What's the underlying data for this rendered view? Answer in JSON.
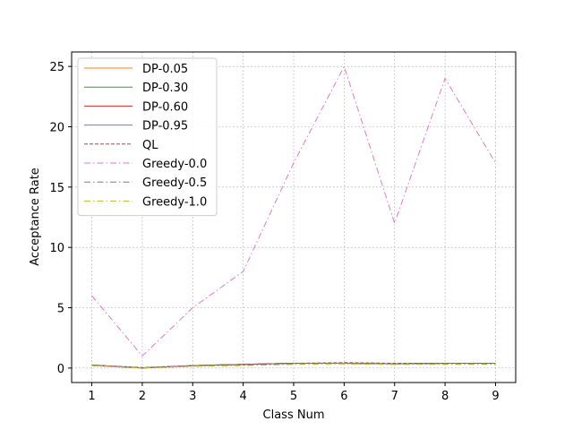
{
  "chart_data": {
    "type": "line",
    "xlabel": "Class Num",
    "ylabel": "Acceptance Rate",
    "x": [
      1,
      2,
      3,
      4,
      5,
      6,
      7,
      8,
      9
    ],
    "xlim": [
      0.6,
      9.4
    ],
    "ylim": [
      -1.2,
      26.2
    ],
    "xticks": [
      1,
      2,
      3,
      4,
      5,
      6,
      7,
      8,
      9
    ],
    "yticks": [
      0,
      5,
      10,
      15,
      20,
      25
    ],
    "grid": true,
    "legend_position": "upper-left",
    "series": [
      {
        "name": "DP-0.05",
        "color": "#ff7f0e",
        "style": "solid",
        "values": [
          0.25,
          0.0,
          0.2,
          0.3,
          0.4,
          0.4,
          0.35,
          0.4,
          0.4
        ]
      },
      {
        "name": "DP-0.30",
        "color": "#2ca02c",
        "style": "solid",
        "values": [
          0.25,
          0.0,
          0.2,
          0.3,
          0.4,
          0.4,
          0.35,
          0.4,
          0.4
        ]
      },
      {
        "name": "DP-0.60",
        "color": "#d62728",
        "style": "solid",
        "values": [
          0.25,
          0.0,
          0.2,
          0.3,
          0.4,
          0.4,
          0.35,
          0.4,
          0.4
        ]
      },
      {
        "name": "DP-0.95",
        "color": "#9467bd",
        "style": "solid",
        "values": [
          0.25,
          0.0,
          0.2,
          0.3,
          0.4,
          0.4,
          0.35,
          0.4,
          0.4
        ]
      },
      {
        "name": "QL",
        "color": "#8c564b",
        "style": "dashed",
        "values": [
          0.25,
          0.05,
          0.2,
          0.3,
          0.4,
          0.45,
          0.4,
          0.4,
          0.4
        ]
      },
      {
        "name": "Greedy-0.0",
        "color": "#e377c2",
        "style": "dashdot",
        "values": [
          6,
          1,
          5,
          8,
          17,
          25,
          12,
          24,
          17
        ]
      },
      {
        "name": "Greedy-0.5",
        "color": "#7f7f7f",
        "style": "dashdot",
        "values": [
          0.2,
          0.0,
          0.15,
          0.25,
          0.35,
          0.35,
          0.3,
          0.35,
          0.35
        ]
      },
      {
        "name": "Greedy-1.0",
        "color": "#bcbd22",
        "style": "dashdot",
        "values": [
          0.2,
          0.0,
          0.15,
          0.2,
          0.3,
          0.35,
          0.3,
          0.3,
          0.3
        ]
      }
    ]
  }
}
